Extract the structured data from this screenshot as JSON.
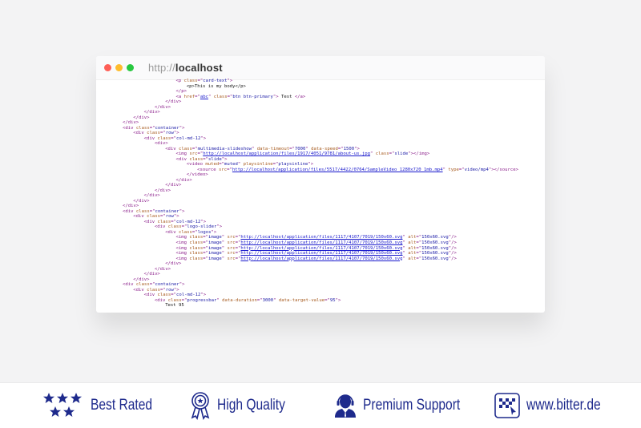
{
  "browser": {
    "url_scheme": "http://",
    "url_host": "localhost",
    "traffic_lights": {
      "close": "#fe5f57",
      "minimize": "#febc2e",
      "maximize": "#28c840"
    }
  },
  "code": {
    "lines": [
      {
        "indent": 5,
        "text": "<p class=\"card-text\">"
      },
      {
        "indent": 6,
        "text": "<p>This is my body</p>"
      },
      {
        "indent": 5,
        "text": "</p>"
      },
      {
        "indent": 5,
        "text": "<a href=\"abc\" class=\"btn btn-primary\"> Test </a>"
      },
      {
        "indent": 4,
        "text": "</div>"
      },
      {
        "indent": 3,
        "text": "</div>"
      },
      {
        "indent": 2,
        "text": "</div>"
      },
      {
        "indent": 1,
        "text": "</div>"
      },
      {
        "indent": 0,
        "text": "</div>"
      },
      {
        "indent": 0,
        "text": "<div class=\"container\">"
      },
      {
        "indent": 1,
        "text": "<div class=\"row\">"
      },
      {
        "indent": 2,
        "text": "<div class=\"col-md-12\">"
      },
      {
        "indent": 3,
        "text": "<div>"
      },
      {
        "indent": 4,
        "text": "<div class=\"multimedia-slideshow\" data-timeout=\"7000\" data-speed=\"1500\">"
      },
      {
        "indent": 5,
        "text": "<img src=\"http://localhost/application/files/1917/4051/9781/about-us.jpg\" class=\"slide\"></img>"
      },
      {
        "indent": 5,
        "text": "<div class=\"slide\">"
      },
      {
        "indent": 6,
        "text": "<video muted=\"muted\" playsinline=\"playsinline\">"
      },
      {
        "indent": 7,
        "text": "<source src=\"http://localhost/application/files/5517/4422/0764/SampleVideo_1280x720_1mb.mp4\" type=\"video/mp4\"></source>"
      },
      {
        "indent": 6,
        "text": "</video>"
      },
      {
        "indent": 5,
        "text": "</div>"
      },
      {
        "indent": 4,
        "text": "</div>"
      },
      {
        "indent": 3,
        "text": "</div>"
      },
      {
        "indent": 2,
        "text": "</div>"
      },
      {
        "indent": 1,
        "text": "</div>"
      },
      {
        "indent": 0,
        "text": "</div>"
      },
      {
        "indent": 0,
        "text": "<div class=\"container\">"
      },
      {
        "indent": 1,
        "text": "<div class=\"row\">"
      },
      {
        "indent": 2,
        "text": "<div class=\"col-md-12\">"
      },
      {
        "indent": 3,
        "text": "<div class=\"logo-slider\">"
      },
      {
        "indent": 4,
        "text": "<div class=\"logos\">"
      },
      {
        "indent": 5,
        "text": "<img class=\"image\" src=\"http://localhost/application/files/1117/4107/7019/150x60.svg\" alt=\"150x60.svg\"/>"
      },
      {
        "indent": 5,
        "text": "<img class=\"image\" src=\"http://localhost/application/files/1117/4107/7019/150x60.svg\" alt=\"150x60.svg\"/>"
      },
      {
        "indent": 5,
        "text": "<img class=\"image\" src=\"http://localhost/application/files/1117/4107/7019/150x60.svg\" alt=\"150x60.svg\"/>"
      },
      {
        "indent": 5,
        "text": "<img class=\"image\" src=\"http://localhost/application/files/1117/4107/7019/150x60.svg\" alt=\"150x60.svg\"/>"
      },
      {
        "indent": 5,
        "text": "<img class=\"image\" src=\"http://localhost/application/files/1117/4107/7019/150x60.svg\" alt=\"150x60.svg\"/>"
      },
      {
        "indent": 4,
        "text": "</div>"
      },
      {
        "indent": 3,
        "text": "</div>"
      },
      {
        "indent": 2,
        "text": "</div>"
      },
      {
        "indent": 1,
        "text": "</div>"
      },
      {
        "indent": 0,
        "text": "<div class=\"container\">"
      },
      {
        "indent": 1,
        "text": "<div class=\"row\">"
      },
      {
        "indent": 2,
        "text": "<div class=\"col-md-12\">"
      },
      {
        "indent": 3,
        "text": "<div class=\"progressbar\" data-duration=\"3000\" data-target-value=\"95\">"
      },
      {
        "indent": 4,
        "text": "Test 95"
      }
    ]
  },
  "footer": {
    "accent": "#1e2a8c",
    "features": [
      {
        "icon": "stars-icon",
        "label": "Best Rated"
      },
      {
        "icon": "award-ribbon-icon",
        "label": "High Quality"
      },
      {
        "icon": "headset-agent-icon",
        "label": "Premium Support"
      },
      {
        "icon": "bitter-logo-icon",
        "label": "www.bitter.de"
      }
    ]
  }
}
